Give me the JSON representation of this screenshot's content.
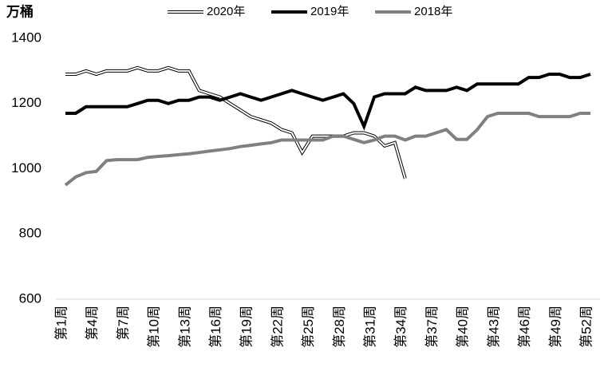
{
  "chart_data": {
    "type": "line",
    "y_unit_label": "万桶",
    "categories": [
      "第1周",
      null,
      null,
      "第4周",
      null,
      null,
      "第7周",
      null,
      null,
      "第10周",
      null,
      null,
      "第13周",
      null,
      null,
      "第16周",
      null,
      null,
      "第19周",
      null,
      null,
      "第22周",
      null,
      null,
      "第25周",
      null,
      null,
      "第28周",
      null,
      null,
      "第31周",
      null,
      null,
      "第34周",
      null,
      null,
      "第37周",
      null,
      null,
      "第40周",
      null,
      null,
      "第43周",
      null,
      null,
      "第46周",
      null,
      null,
      "第49周",
      null,
      null,
      "第52周"
    ],
    "series": [
      {
        "name": "2020年",
        "color": "#ffffff",
        "edge_color": "#000000",
        "values": [
          1290,
          1290,
          1300,
          1290,
          1300,
          1300,
          1300,
          1310,
          1300,
          1300,
          1310,
          1300,
          1300,
          1240,
          1230,
          1220,
          1200,
          1180,
          1160,
          1150,
          1140,
          1120,
          1110,
          1050,
          1100,
          1100,
          1100,
          1100,
          1110,
          1110,
          1100,
          1070,
          1080,
          970,
          null,
          null,
          null,
          null,
          null,
          null,
          null,
          null,
          null,
          null,
          null,
          null,
          null,
          null,
          null,
          null,
          null,
          null
        ]
      },
      {
        "name": "2019年",
        "color": "#000000",
        "values": [
          1170,
          1170,
          1190,
          1190,
          1190,
          1190,
          1190,
          1200,
          1210,
          1210,
          1200,
          1210,
          1210,
          1220,
          1220,
          1210,
          1220,
          1230,
          1220,
          1210,
          1220,
          1230,
          1240,
          1230,
          1220,
          1210,
          1220,
          1230,
          1200,
          1130,
          1220,
          1230,
          1230,
          1230,
          1250,
          1240,
          1240,
          1240,
          1250,
          1240,
          1260,
          1260,
          1260,
          1260,
          1260,
          1280,
          1280,
          1290,
          1290,
          1280,
          1280,
          1290
        ]
      },
      {
        "name": "2018年",
        "color": "#808080",
        "values": [
          950,
          975,
          988,
          992,
          1025,
          1028,
          1028,
          1028,
          1035,
          1038,
          1040,
          1043,
          1046,
          1050,
          1054,
          1058,
          1062,
          1068,
          1072,
          1076,
          1080,
          1088,
          1088,
          1088,
          1088,
          1088,
          1100,
          1100,
          1090,
          1080,
          1088,
          1100,
          1100,
          1088,
          1100,
          1100,
          1110,
          1120,
          1090,
          1090,
          1120,
          1160,
          1170,
          1170,
          1170,
          1170,
          1160,
          1160,
          1160,
          1160,
          1170,
          1170
        ]
      }
    ],
    "ylim": [
      600,
      1400
    ],
    "yticks": [
      600,
      800,
      1000,
      1200,
      1400
    ],
    "grid": false,
    "legend": "top"
  }
}
